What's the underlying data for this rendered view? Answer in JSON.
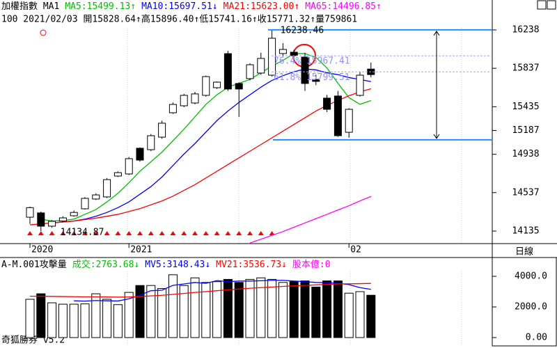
{
  "app_footer": "奇狐勝券 v5.2",
  "period": "日線",
  "header": {
    "quote": "100 2021/02/03 開15828.64↑高15896.40↑低15741.16↑收15771.32↑量759861"
  },
  "chart_data": [
    {
      "type": "candlestick",
      "title": "加權指數 MA1",
      "categories": [
        "2020",
        null,
        null,
        null,
        null,
        null,
        null,
        null,
        null,
        "2021",
        null,
        null,
        null,
        null,
        null,
        null,
        null,
        null,
        null,
        null,
        null,
        null,
        null,
        null,
        null,
        null,
        null,
        null,
        null,
        "02",
        null,
        null
      ],
      "open": [
        14280,
        14325,
        14186,
        14240,
        14295,
        14368,
        14470,
        14492,
        14710,
        14732,
        15001,
        14986,
        15117,
        15372,
        15445,
        15474,
        15554,
        15634,
        15990,
        15678,
        15729,
        15787,
        15765,
        15991,
        16005,
        15954,
        15720,
        15525,
        15547,
        15168,
        15554,
        15828.64
      ],
      "high": [
        14390,
        14340,
        14250,
        14290,
        14350,
        14490,
        14530,
        14690,
        14760,
        14910,
        15010,
        15150,
        15290,
        15480,
        15570,
        15590,
        15760,
        15700,
        16020,
        15690,
        15890,
        16000,
        16238.46,
        16100,
        16030,
        16000,
        15770,
        15560,
        15600,
        15420,
        15800,
        15896.4
      ],
      "low": [
        14210,
        14134.87,
        14170,
        14230,
        14285,
        14360,
        14460,
        14480,
        14700,
        14720,
        14860,
        14970,
        15100,
        15360,
        15430,
        15460,
        15540,
        15620,
        15600,
        15328,
        15710,
        15770,
        15750,
        15960,
        15900,
        15600,
        15660,
        15380,
        15120,
        15111,
        15540,
        15741.16
      ],
      "close": [
        14380,
        14186,
        14237,
        14273,
        14330,
        14477,
        14513,
        14673,
        14746,
        14892,
        14877,
        15132,
        15263,
        15459,
        15554,
        15569,
        15750,
        15692,
        15620,
        15620,
        15874,
        15940,
        16151,
        16034,
        15969,
        15678,
        15700,
        15408,
        15132,
        15408,
        15765,
        15771.32
      ],
      "series": [
        {
          "legend_text": "MA5:15499.13↑",
          "color": "#00c000",
          "values": [
            null,
            14260,
            14240,
            14245,
            14260,
            14310,
            14360,
            14440,
            14530,
            14640,
            14760,
            14860,
            14960,
            15080,
            15200,
            15330,
            15460,
            15560,
            15640,
            15680,
            15720,
            15790,
            15860,
            15920,
            15990,
            15990,
            15950,
            15840,
            15680,
            15530,
            15460,
            15499.13
          ]
        },
        {
          "legend_text": "MA10:15697.51↓",
          "color": "#0000ff",
          "values": [
            null,
            null,
            14220,
            14230,
            14240,
            14260,
            14290,
            14330,
            14380,
            14440,
            14520,
            14600,
            14700,
            14820,
            14940,
            15050,
            15170,
            15290,
            15390,
            15480,
            15560,
            15640,
            15710,
            15760,
            15800,
            15830,
            15820,
            15790,
            15770,
            15740,
            15720,
            15697.51
          ]
        },
        {
          "legend_text": "MA21:15623.00↑",
          "color": "#ff0000",
          "values": [
            14200,
            14210,
            14220,
            14230,
            14240,
            14255,
            14270,
            14290,
            14310,
            14340,
            14370,
            14410,
            14450,
            14500,
            14560,
            14620,
            14690,
            14760,
            14830,
            14900,
            14970,
            15040,
            15110,
            15180,
            15250,
            15320,
            15390,
            15450,
            15500,
            15550,
            15590,
            15623.0
          ]
        },
        {
          "legend_text": "MA65:14496.85↑",
          "color": "#ff00ff",
          "values": [
            null,
            null,
            null,
            null,
            null,
            null,
            null,
            null,
            null,
            null,
            null,
            null,
            null,
            null,
            null,
            null,
            null,
            null,
            null,
            null,
            14010,
            14050,
            14090,
            14130,
            14175,
            14220,
            14265,
            14310,
            14355,
            14400,
            14450,
            14496.85
          ]
        }
      ],
      "annotations": {
        "high": 16238.46,
        "low": 14134.87
      },
      "fib": {
        "high": 16238.46,
        "low": 15089.1,
        "levels": [
          {
            "value": 15967.41,
            "label": "76.4% 15967.41"
          },
          {
            "value": 15799.51,
            "label": "61.8% 15799.51"
          }
        ]
      },
      "ylim": [
        14004,
        16529
      ],
      "yticks": [
        14135,
        14537,
        14938,
        15187,
        15435,
        15837,
        16238
      ]
    },
    {
      "type": "bar",
      "title": "A-M.001攻擊量",
      "extra_text": "股本億:0",
      "series": [
        {
          "legend_text": "成交:2763.68↓",
          "values": [
            2500,
            2860,
            2270,
            2180,
            2180,
            2200,
            2860,
            2500,
            2150,
            2950,
            3400,
            3400,
            3200,
            4100,
            3400,
            3900,
            3600,
            3650,
            3800,
            3600,
            3800,
            3900,
            3800,
            3600,
            3650,
            3700,
            3300,
            3700,
            3700,
            2900,
            3000,
            2763.68
          ]
        },
        {
          "legend_text": "MV5:3148.43↓",
          "color": "#0000ff",
          "values": [
            null,
            null,
            null,
            null,
            2400,
            2380,
            2420,
            2400,
            2390,
            2530,
            2770,
            3060,
            3090,
            3410,
            3500,
            3600,
            3540,
            3720,
            3650,
            3690,
            3690,
            3710,
            3740,
            3740,
            3690,
            3650,
            3600,
            3590,
            3540,
            3460,
            3260,
            3148.43
          ]
        },
        {
          "legend_text": "MV21:3536.73↓",
          "color": "#ff0000",
          "values": [
            2700,
            2700,
            2690,
            2680,
            2670,
            2660,
            2660,
            2650,
            2640,
            2650,
            2680,
            2720,
            2760,
            2820,
            2880,
            2950,
            3000,
            3060,
            3120,
            3170,
            3220,
            3260,
            3300,
            3340,
            3380,
            3410,
            3440,
            3470,
            3500,
            3510,
            3520,
            3536.73
          ]
        }
      ],
      "ylim": [
        -545,
        5227
      ],
      "yticks": [
        {
          "value": 0,
          "label": "0.00"
        },
        {
          "value": 2000,
          "label": "2000.0"
        },
        {
          "value": 4000,
          "label": "4000.0"
        }
      ]
    }
  ]
}
